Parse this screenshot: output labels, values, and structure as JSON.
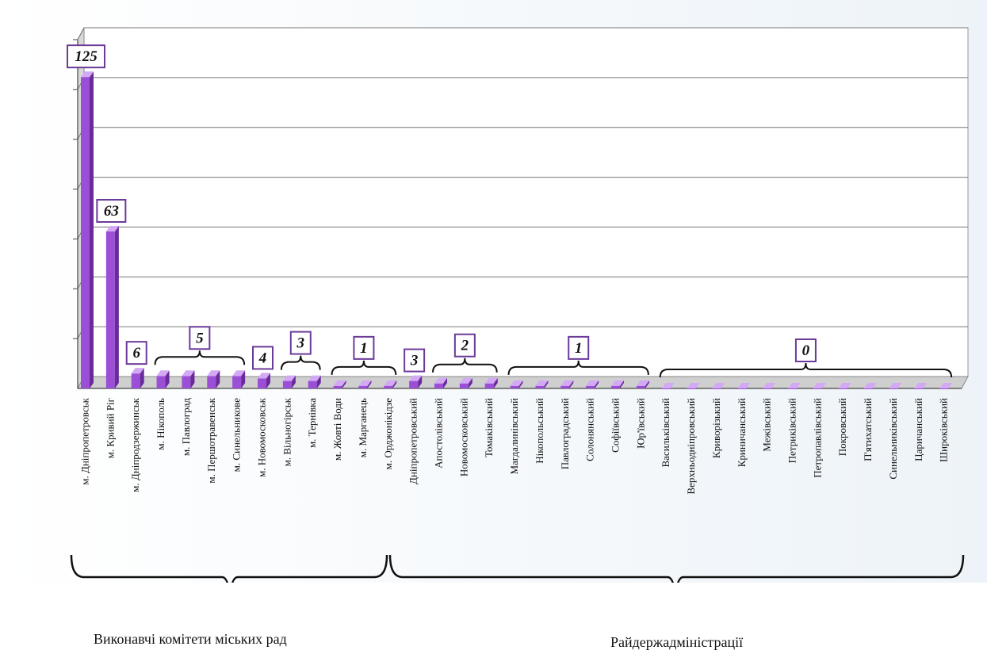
{
  "chart_data": {
    "type": "bar",
    "title": "",
    "xlabel": "",
    "ylabel": "",
    "ylim": [
      0,
      140
    ],
    "grid": true,
    "categories": [
      "м. Дніпропетровськ",
      "м. Кривий Ріг",
      "м. Дніпродзержинськ",
      "м. Нікополь",
      "м. Павлоград",
      "м. Першотравенськ",
      "м. Синельникове",
      "м. Новомосковськ",
      "м. Вільногірськ",
      "м. Тернівка",
      "м. Жовті Води",
      "м. Марганець",
      "м. Орджонікідзе",
      "Дніпропетровський",
      "Апостолівський",
      "Новомосковський",
      "Томаківський",
      "Магдалинівський",
      "Нікопольський",
      "Павлоградський",
      "Солонянський",
      "Софіївський",
      "Юр'ївський",
      "Васильківський",
      "Верхньодніпровський",
      "Криворізький",
      "Криничанський",
      "Межівський",
      "Петриківський",
      "Петропавлівський",
      "Покровський",
      "П'ятихатський",
      "Синельниківський",
      "Царичанський",
      "Широківський"
    ],
    "values": [
      125,
      63,
      6,
      5,
      5,
      5,
      5,
      4,
      3,
      3,
      1,
      1,
      1,
      3,
      2,
      2,
      2,
      1,
      1,
      1,
      1,
      1,
      1,
      0,
      0,
      0,
      0,
      0,
      0,
      0,
      0,
      0,
      0,
      0,
      0
    ],
    "annotations": [
      {
        "label": "125",
        "start": 0,
        "end": 0
      },
      {
        "label": "63",
        "start": 1,
        "end": 1
      },
      {
        "label": "6",
        "start": 2,
        "end": 2
      },
      {
        "label": "5",
        "start": 3,
        "end": 6
      },
      {
        "label": "4",
        "start": 7,
        "end": 7
      },
      {
        "label": "3",
        "start": 8,
        "end": 9
      },
      {
        "label": "1",
        "start": 10,
        "end": 12
      },
      {
        "label": "3",
        "start": 13,
        "end": 13
      },
      {
        "label": "2",
        "start": 14,
        "end": 16
      },
      {
        "label": "1",
        "start": 17,
        "end": 22
      },
      {
        "label": "0",
        "start": 23,
        "end": 34
      }
    ],
    "groups": [
      {
        "label": "Виконавчі комітети міських рад",
        "start": 0,
        "end": 12
      },
      {
        "label": "Райдержадміністрації",
        "start": 13,
        "end": 34
      }
    ],
    "colors": {
      "bar": "#9b4fd6",
      "bar_top": "#d3a8f5",
      "bar_side": "#6a2a9a",
      "grid": "#777777",
      "label_border": "#6a3a9a"
    }
  }
}
